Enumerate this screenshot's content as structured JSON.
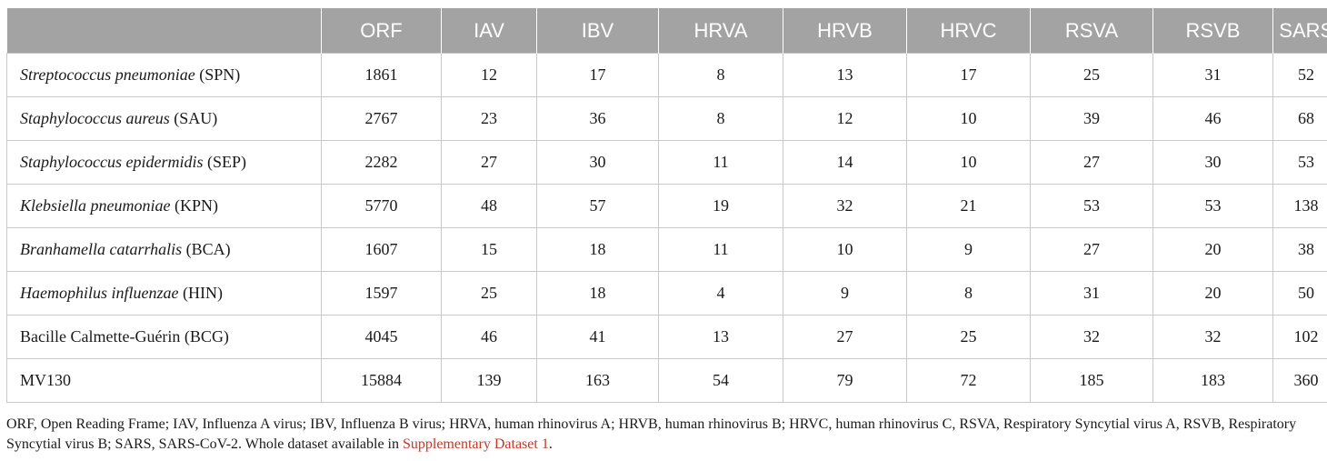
{
  "table": {
    "columns": [
      "",
      "ORF",
      "IAV",
      "IBV",
      "HRVA",
      "HRVB",
      "HRVC",
      "RSVA",
      "RSVB",
      "SARS"
    ],
    "rows": [
      {
        "name_italic": "Streptococcus pneumoniae",
        "name_suffix": " (SPN)",
        "values": [
          "1861",
          "12",
          "17",
          "8",
          "13",
          "17",
          "25",
          "31",
          "52"
        ]
      },
      {
        "name_italic": "Staphylococcus aureus",
        "name_suffix": " (SAU)",
        "values": [
          "2767",
          "23",
          "36",
          "8",
          "12",
          "10",
          "39",
          "46",
          "68"
        ]
      },
      {
        "name_italic": "Staphylococcus epidermidis",
        "name_suffix": " (SEP)",
        "values": [
          "2282",
          "27",
          "30",
          "11",
          "14",
          "10",
          "27",
          "30",
          "53"
        ]
      },
      {
        "name_italic": "Klebsiella pneumoniae",
        "name_suffix": " (KPN)",
        "values": [
          "5770",
          "48",
          "57",
          "19",
          "32",
          "21",
          "53",
          "53",
          "138"
        ]
      },
      {
        "name_italic": "Branhamella catarrhalis",
        "name_suffix": " (BCA)",
        "values": [
          "1607",
          "15",
          "18",
          "11",
          "10",
          "9",
          "27",
          "20",
          "38"
        ]
      },
      {
        "name_italic": "Haemophilus influenzae",
        "name_suffix": " (HIN)",
        "values": [
          "1597",
          "25",
          "18",
          "4",
          "9",
          "8",
          "31",
          "20",
          "50"
        ]
      },
      {
        "name_italic": "",
        "name_suffix": "Bacille Calmette-Guérin (BCG)",
        "values": [
          "4045",
          "46",
          "41",
          "13",
          "27",
          "25",
          "32",
          "32",
          "102"
        ]
      },
      {
        "name_italic": "",
        "name_suffix": "MV130",
        "values": [
          "15884",
          "139",
          "163",
          "54",
          "79",
          "72",
          "185",
          "183",
          "360"
        ]
      }
    ]
  },
  "footnote": {
    "text": "ORF, Open Reading Frame; IAV, Influenza A virus; IBV, Influenza B virus; HRVA, human rhinovirus A; HRVB, human rhinovirus B; HRVC, human rhinovirus C, RSVA, Respiratory Syncytial virus A, RSVB, Respiratory Syncytial virus B; SARS, SARS-CoV-2. Whole dataset available in ",
    "link": "Supplementary Dataset 1",
    "end": "."
  },
  "colors": {
    "header_bg": "#a3a3a3",
    "header_text": "#ffffff",
    "link": "#c0392b"
  }
}
